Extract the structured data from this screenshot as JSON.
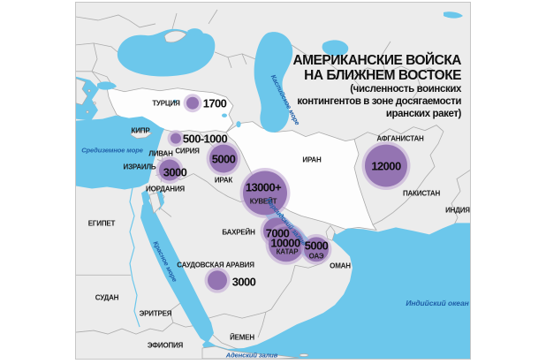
{
  "title": {
    "line1": "АМЕРИКАНСКИЕ ВОЙСКА",
    "line2": "НА БЛИЖНЕМ ВОСТОКЕ",
    "subtitle1": "(численность воинских",
    "subtitle2": "контингентов в зоне досягаемости",
    "subtitle3": "иранских ракет)"
  },
  "chart_data": {
    "type": "map-bubbles",
    "title": "АМЕРИКАНСКИЕ ВОЙСКА НА БЛИЖНЕМ ВОСТОКЕ",
    "subtitle": "(численность воинских контингентов в зоне досягаемости иранских ракет)",
    "series": [
      {
        "id": "turkey",
        "country": "ТУРЦИЯ",
        "value": "1700"
      },
      {
        "id": "syria",
        "country": "СИРИЯ",
        "value": "500-1000"
      },
      {
        "id": "israel",
        "country": "ИЗРАИЛЬ",
        "value": "3000"
      },
      {
        "id": "iraq",
        "country": "ИРАК",
        "value": "5000"
      },
      {
        "id": "kuwait",
        "country": "КУВЕЙТ",
        "value": "13000+"
      },
      {
        "id": "bahrain",
        "country": "БАХРЕЙН",
        "value": "7000"
      },
      {
        "id": "qatar",
        "country": "КАТАР",
        "value": "10000"
      },
      {
        "id": "uae",
        "country": "ОАЭ",
        "value": "5000"
      },
      {
        "id": "saudi_arabia",
        "country": "САУДОВСКАЯ АРАВИЯ",
        "value": "3000"
      },
      {
        "id": "afghanistan",
        "country": "АФГАНИСТАН",
        "value": "12000"
      }
    ]
  },
  "map": {
    "country_labels": [
      {
        "id": "turkey",
        "text": "ТУРЦИЯ"
      },
      {
        "id": "cyprus",
        "text": "КИПР"
      },
      {
        "id": "lebanon",
        "text": "ЛИВАН"
      },
      {
        "id": "syria",
        "text": "СИРИЯ"
      },
      {
        "id": "israel",
        "text": "ИЗРАИЛЬ"
      },
      {
        "id": "jordan",
        "text": "ИОРДАНИЯ"
      },
      {
        "id": "iraq",
        "text": "ИРАК"
      },
      {
        "id": "iran",
        "text": "ИРАН"
      },
      {
        "id": "kuwait",
        "text": "КУВЕЙТ"
      },
      {
        "id": "bahrain",
        "text": "БАХРЕЙН"
      },
      {
        "id": "qatar",
        "text": "КАТАР"
      },
      {
        "id": "uae",
        "text": "ОАЭ"
      },
      {
        "id": "oman",
        "text": "ОМАН"
      },
      {
        "id": "saudi_arabia",
        "text": "САУДОВСКАЯ АРАВИЯ"
      },
      {
        "id": "egypt",
        "text": "ЕГИПЕТ"
      },
      {
        "id": "sudan",
        "text": "СУДАН"
      },
      {
        "id": "eritrea",
        "text": "ЭРИТРЕЯ"
      },
      {
        "id": "ethiopia",
        "text": "ЭФИОПИЯ"
      },
      {
        "id": "yemen",
        "text": "ЙЕМЕН"
      },
      {
        "id": "afghanistan",
        "text": "АФГАНИСТАН"
      },
      {
        "id": "pakistan",
        "text": "ПАКИСТАН"
      },
      {
        "id": "india",
        "text": "ИНДИЯ"
      }
    ],
    "water_labels": [
      {
        "id": "mediterranean",
        "text": "Средиземное море"
      },
      {
        "id": "caspian",
        "text": "Каспийское море"
      },
      {
        "id": "red_sea",
        "text": "Красное море"
      },
      {
        "id": "persian_gulf",
        "text": "Персидский залив"
      },
      {
        "id": "gulf_of_aden",
        "text": "Аденский залив"
      },
      {
        "id": "indian_ocean",
        "text": "Индийский океан"
      }
    ]
  },
  "colors": {
    "sea": "#6cc7eb",
    "land": "#ececec",
    "highlight_country": "#fdfdfd",
    "border": "#ababab",
    "bubble": "#9474b2",
    "bubble_halo": "#c2a8d4",
    "water_label": "#1f5fa8",
    "label_text": "#1b1b1b"
  }
}
